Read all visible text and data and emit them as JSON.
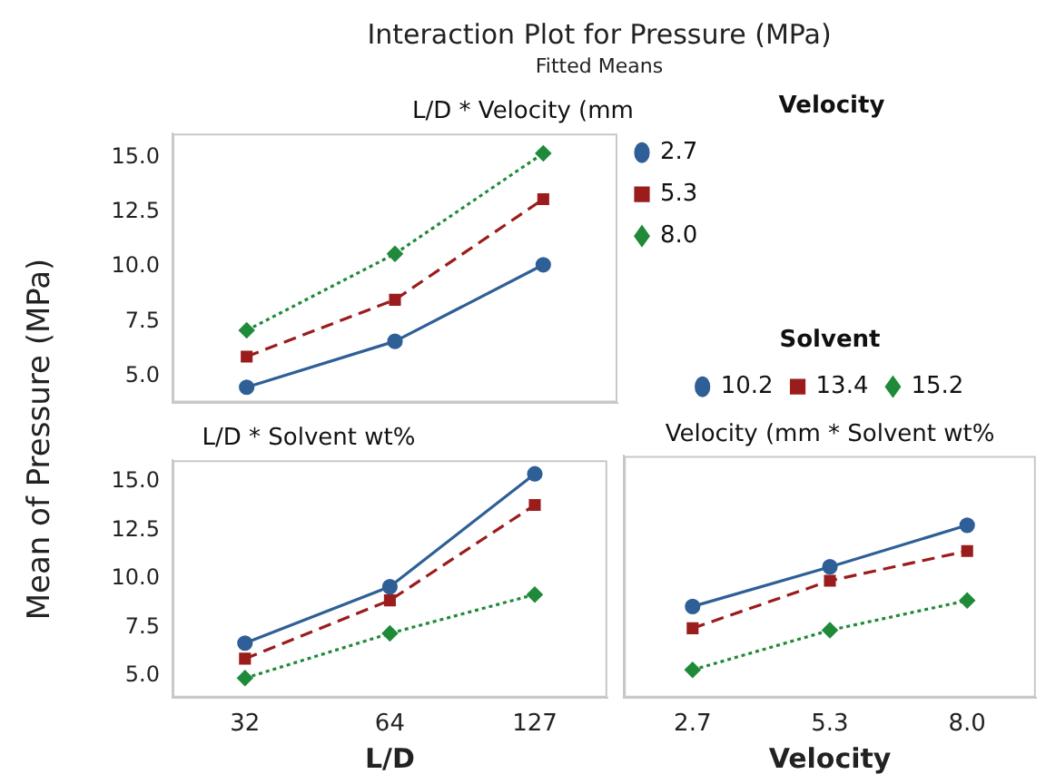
{
  "chart_data": [
    {
      "type": "line",
      "title": "L/D * Velocity (mm",
      "annotations": [
        "Interaction Plot for Pressure (MPa)",
        "Fitted Means"
      ],
      "categories": [
        "32",
        "64",
        "127"
      ],
      "legend_title": "Velocity",
      "legend": "right",
      "tick_labels": "y",
      "ylim": [
        3.8,
        16.1
      ],
      "yticks": [
        {
          "value": 5,
          "label": "5.0"
        },
        {
          "value": 7.5,
          "label": "7.5"
        },
        {
          "value": 10,
          "label": "10.0"
        },
        {
          "value": 12.5,
          "label": "12.5"
        },
        {
          "value": 15,
          "label": "15.0"
        }
      ],
      "series": [
        {
          "name": "2.7",
          "color": "#2e5f96",
          "marker": "circle",
          "line_style": "solid",
          "values": [
            4.5,
            6.6,
            10.1
          ]
        },
        {
          "name": "5.3",
          "color": "#9b1c1c",
          "marker": "square",
          "line_style": "dashed",
          "values": [
            5.9,
            8.5,
            13.1
          ]
        },
        {
          "name": "8.0",
          "color": "#1f8a3a",
          "marker": "diamond",
          "line_style": "dotted",
          "values": [
            7.1,
            10.6,
            15.2
          ]
        }
      ]
    },
    {
      "type": "line",
      "title": "L/D * Solvent wt%",
      "xlabel": "L/D",
      "ylabel": "Mean of Pressure (MPa)",
      "categories": [
        "32",
        "64",
        "127"
      ],
      "ylim": [
        3.9,
        16.1
      ],
      "yticks": [
        {
          "value": 5,
          "label": "5.0"
        },
        {
          "value": 7.5,
          "label": "7.5"
        },
        {
          "value": 10,
          "label": "10.0"
        },
        {
          "value": 12.5,
          "label": "12.5"
        },
        {
          "value": 15,
          "label": "15.0"
        }
      ],
      "series": [
        {
          "color": "#2e5f96",
          "marker": "circle",
          "line_style": "solid",
          "values": [
            6.7,
            9.6,
            15.4
          ]
        },
        {
          "color": "#9b1c1c",
          "marker": "square",
          "line_style": "dashed",
          "values": [
            5.9,
            8.9,
            13.8
          ]
        },
        {
          "color": "#1f8a3a",
          "marker": "diamond",
          "line_style": "dotted",
          "values": [
            4.9,
            7.2,
            9.2
          ]
        }
      ]
    },
    {
      "type": "line",
      "title": "Velocity (mm * Solvent wt%",
      "xlabel": "Velocity",
      "categories": [
        "2.7",
        "5.3",
        "8.0"
      ],
      "legend_title": "Solvent",
      "legend": "top",
      "tick_labels": "x",
      "ylim": [
        3.9,
        16.1
      ],
      "series": [
        {
          "name": "10.2",
          "color": "#2e5f96",
          "marker": "circle",
          "line_style": "solid",
          "values": [
            8.5,
            10.5,
            12.6
          ]
        },
        {
          "name": "13.4",
          "color": "#9b1c1c",
          "marker": "square",
          "line_style": "dashed",
          "values": [
            7.4,
            9.8,
            11.3
          ]
        },
        {
          "name": "15.2",
          "color": "#1f8a3a",
          "marker": "diamond",
          "line_style": "dotted",
          "values": [
            5.3,
            7.3,
            8.8
          ]
        }
      ]
    }
  ]
}
